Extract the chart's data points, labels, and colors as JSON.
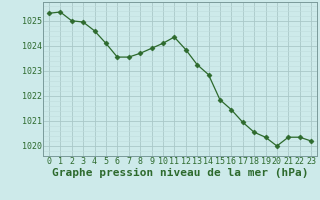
{
  "x": [
    0,
    1,
    2,
    3,
    4,
    5,
    6,
    7,
    8,
    9,
    10,
    11,
    12,
    13,
    14,
    15,
    16,
    17,
    18,
    19,
    20,
    21,
    22,
    23
  ],
  "y": [
    1025.3,
    1025.35,
    1025.0,
    1024.95,
    1024.6,
    1024.1,
    1023.55,
    1023.55,
    1023.7,
    1023.9,
    1024.1,
    1024.35,
    1023.85,
    1023.25,
    1022.85,
    1021.85,
    1021.45,
    1020.95,
    1020.55,
    1020.35,
    1020.0,
    1020.35,
    1020.35,
    1020.2
  ],
  "line_color": "#2d6a2d",
  "marker": "D",
  "marker_size": 2.5,
  "bg_color": "#cdeaea",
  "grid_major_color": "#aac8c8",
  "grid_minor_color": "#c0dcdc",
  "xlabel": "Graphe pression niveau de la mer (hPa)",
  "xlabel_color": "#2d6a2d",
  "tick_label_color": "#2d6a2d",
  "ylim": [
    1019.6,
    1025.75
  ],
  "yticks": [
    1020,
    1021,
    1022,
    1023,
    1024,
    1025
  ],
  "xticks": [
    0,
    1,
    2,
    3,
    4,
    5,
    6,
    7,
    8,
    9,
    10,
    11,
    12,
    13,
    14,
    15,
    16,
    17,
    18,
    19,
    20,
    21,
    22,
    23
  ],
  "tick_fontsize": 6.0,
  "xlabel_fontsize": 8.0
}
